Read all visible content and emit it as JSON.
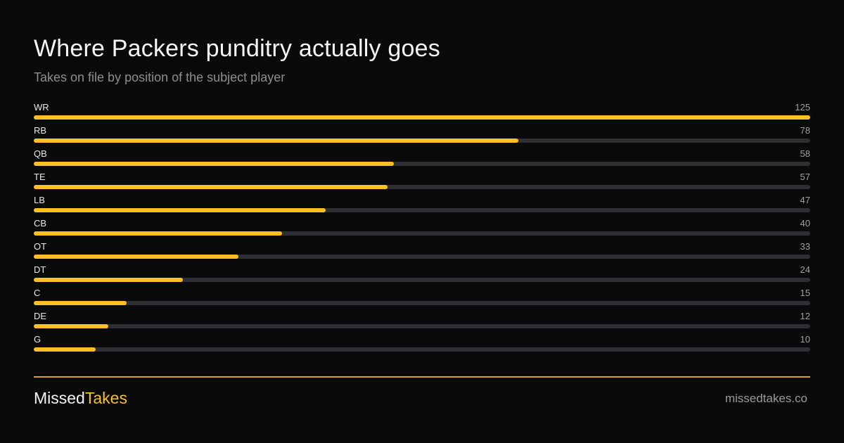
{
  "header": {
    "title": "Where Packers punditry actually goes",
    "subtitle": "Takes on file by position of the subject player"
  },
  "footer": {
    "brand_main": "Missed",
    "brand_accent": "Takes",
    "site": "missedtakes.co"
  },
  "colors": {
    "background": "#0a0a0a",
    "accent": "#fbbf24",
    "track": "#2e2e33"
  },
  "chart_data": {
    "type": "bar",
    "orientation": "horizontal",
    "title": "Where Packers punditry actually goes",
    "subtitle": "Takes on file by position of the subject player",
    "categories": [
      "WR",
      "RB",
      "QB",
      "TE",
      "LB",
      "CB",
      "OT",
      "DT",
      "C",
      "DE",
      "G"
    ],
    "values": [
      125,
      78,
      58,
      57,
      47,
      40,
      33,
      24,
      15,
      12,
      10
    ],
    "xlim": [
      0,
      125
    ],
    "grid": false,
    "legend": false
  }
}
